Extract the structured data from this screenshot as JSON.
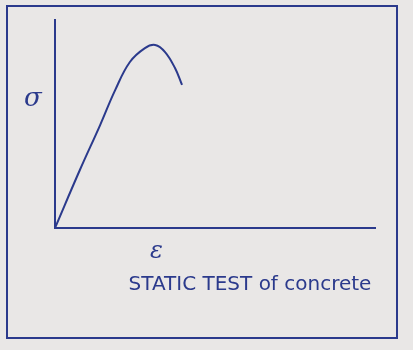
{
  "chart_data": {
    "type": "line",
    "title": "STATIC TEST of concrete",
    "x_label": "ε",
    "y_label": "σ",
    "x": [
      0,
      0.78,
      1.41,
      1.88,
      2.34,
      2.81,
      3.13,
      3.44,
      3.75,
      3.97
    ],
    "values": [
      0,
      2.8,
      4.95,
      6.63,
      7.98,
      8.65,
      8.8,
      8.46,
      7.69,
      6.88
    ],
    "color": "#2b3a8c",
    "xlim": [
      0,
      10
    ],
    "ylim": [
      0,
      10
    ],
    "grid": false,
    "tick_labels": false
  }
}
